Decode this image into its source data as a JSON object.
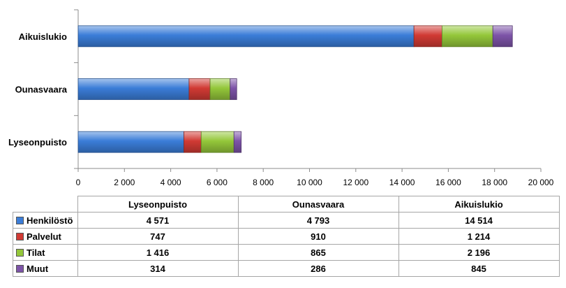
{
  "chart_data": {
    "type": "bar",
    "orientation": "horizontal",
    "stacked": true,
    "categories": [
      "Lyseonpuisto",
      "Ounasvaara",
      "Aikuislukio"
    ],
    "series": [
      {
        "name": "Henkilöstö",
        "color": "#3b7dd8",
        "values": [
          4571,
          4793,
          14514
        ],
        "display": [
          "4 571",
          "4 793",
          "14 514"
        ]
      },
      {
        "name": "Palvelut",
        "color": "#d13a34",
        "values": [
          747,
          910,
          1214
        ],
        "display": [
          "747",
          "910",
          "1 214"
        ]
      },
      {
        "name": "Tilat",
        "color": "#94c73a",
        "values": [
          1416,
          865,
          2196
        ],
        "display": [
          "1 416",
          "865",
          "2 196"
        ]
      },
      {
        "name": "Muut",
        "color": "#7d54a8",
        "values": [
          314,
          286,
          845
        ],
        "display": [
          "314",
          "286",
          "845"
        ]
      }
    ],
    "xlim": [
      0,
      20000
    ],
    "xticks": [
      0,
      2000,
      4000,
      6000,
      8000,
      10000,
      12000,
      14000,
      16000,
      18000,
      20000
    ],
    "xtick_labels": [
      "0",
      "2 000",
      "4 000",
      "6 000",
      "8 000",
      "10 000",
      "12 000",
      "14 000",
      "16 000",
      "18 000",
      "20 000"
    ],
    "grid": false,
    "legend": "data-table"
  }
}
